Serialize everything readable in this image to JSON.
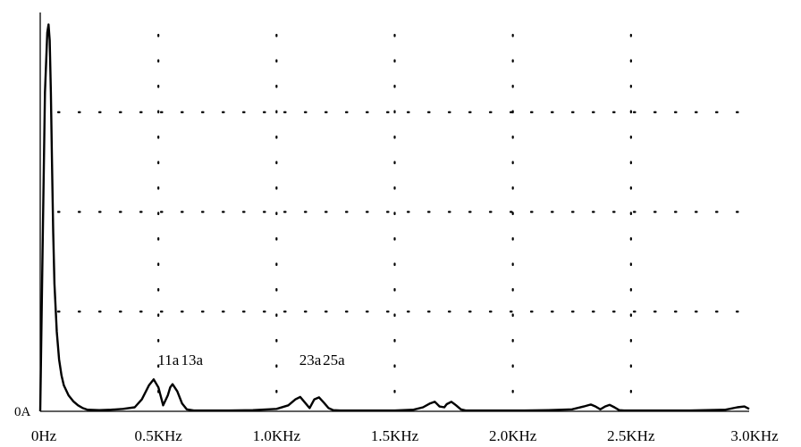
{
  "chart_data": {
    "type": "line",
    "title": "",
    "xlabel": "",
    "ylabel": "",
    "x_unit": "Hz",
    "xlim": [
      0,
      3000
    ],
    "ylim": [
      0,
      1
    ],
    "y_zero_label": "0A",
    "grid": "dotted",
    "x_ticks": [
      {
        "value": 0,
        "label": "0Hz"
      },
      {
        "value": 500,
        "label": "0.5KHz"
      },
      {
        "value": 1000,
        "label": "1.0KHz"
      },
      {
        "value": 1500,
        "label": "1.5KHz"
      },
      {
        "value": 2000,
        "label": "2.0KHz"
      },
      {
        "value": 2500,
        "label": "2.5KHz"
      },
      {
        "value": 3000,
        "label": "3.0KHz"
      }
    ],
    "y_gridlines": [
      0.25,
      0.5,
      0.75
    ],
    "series": [
      {
        "x": [
          0,
          10,
          20,
          30,
          35,
          40,
          45,
          50,
          55,
          60,
          70,
          80,
          90,
          100,
          120,
          140,
          160,
          180,
          200,
          250,
          300,
          350,
          400,
          430,
          460,
          480,
          500,
          520,
          540,
          550,
          560,
          580,
          600,
          620,
          650,
          700,
          800,
          900,
          1000,
          1050,
          1080,
          1100,
          1120,
          1140,
          1160,
          1180,
          1200,
          1220,
          1240,
          1270,
          1320,
          1400,
          1500,
          1580,
          1620,
          1650,
          1670,
          1690,
          1710,
          1720,
          1740,
          1760,
          1780,
          1800,
          1850,
          1950,
          2050,
          2150,
          2250,
          2300,
          2330,
          2350,
          2370,
          2390,
          2410,
          2430,
          2450,
          2470,
          2500,
          2600,
          2750,
          2900,
          2950,
          2980,
          3000
        ],
        "y": [
          0,
          0.4,
          0.8,
          0.95,
          0.97,
          0.93,
          0.8,
          0.62,
          0.45,
          0.32,
          0.2,
          0.13,
          0.09,
          0.065,
          0.04,
          0.025,
          0.015,
          0.008,
          0.004,
          0.003,
          0.004,
          0.006,
          0.01,
          0.03,
          0.065,
          0.08,
          0.06,
          0.015,
          0.04,
          0.06,
          0.068,
          0.05,
          0.02,
          0.005,
          0.002,
          0.002,
          0.002,
          0.003,
          0.006,
          0.015,
          0.03,
          0.036,
          0.022,
          0.008,
          0.03,
          0.035,
          0.022,
          0.008,
          0.003,
          0.002,
          0.002,
          0.002,
          0.002,
          0.004,
          0.01,
          0.02,
          0.024,
          0.012,
          0.01,
          0.018,
          0.024,
          0.015,
          0.005,
          0.002,
          0.002,
          0.002,
          0.002,
          0.003,
          0.005,
          0.012,
          0.017,
          0.012,
          0.005,
          0.012,
          0.016,
          0.01,
          0.003,
          0.002,
          0.002,
          0.002,
          0.002,
          0.004,
          0.01,
          0.012,
          0.006
        ]
      }
    ],
    "annotations": [
      {
        "label": "11a",
        "x": 550
      },
      {
        "label": "13a",
        "x": 650
      },
      {
        "label": "23a",
        "x": 1150
      },
      {
        "label": "25a",
        "x": 1250
      }
    ]
  }
}
